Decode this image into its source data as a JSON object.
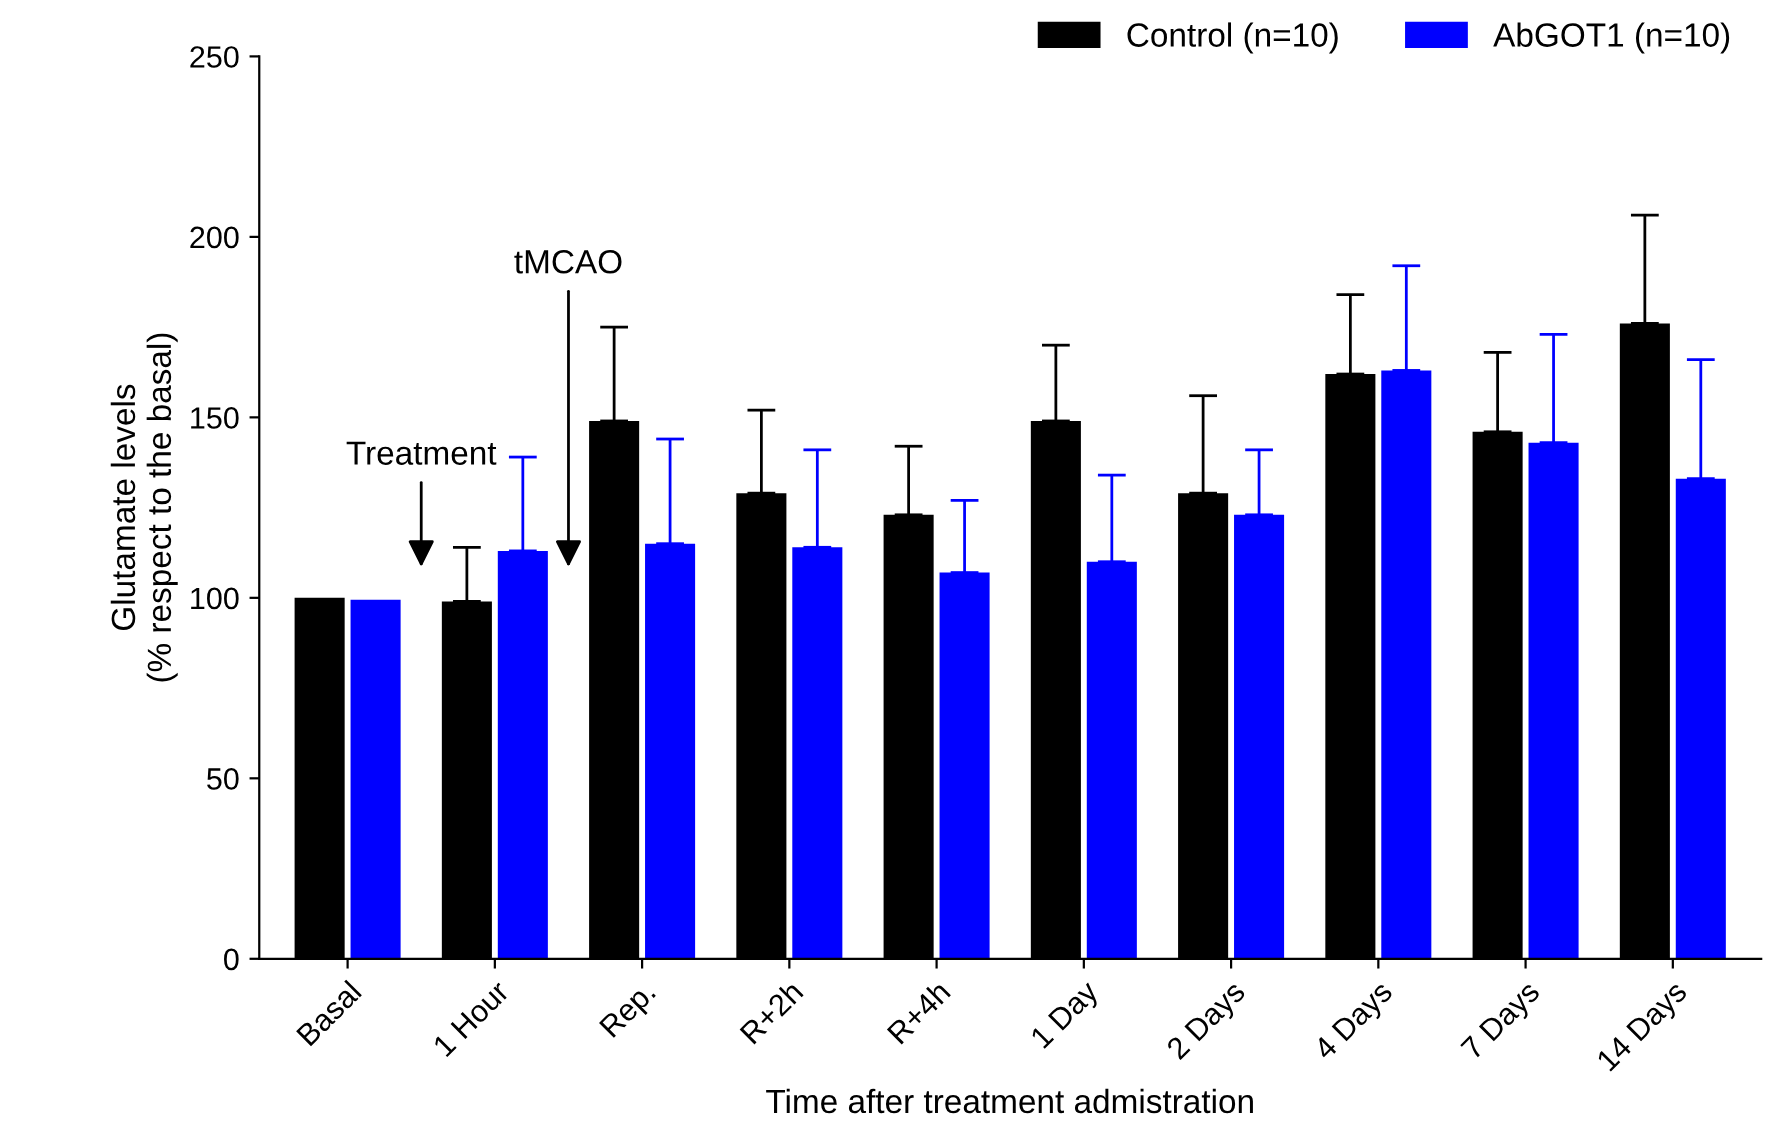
{
  "chart_data": {
    "type": "bar",
    "xlabel": "Time after treatment admistration",
    "ylabel": "Glutamate levels\n(% respect to the basal)",
    "categories": [
      "Basal",
      "1 Hour",
      "Rep.",
      "R+2h",
      "R+4h",
      "1 Day",
      "2 Days",
      "4 Days",
      "7 Days",
      "14 Days"
    ],
    "series": [
      {
        "name": "Control (n=10)",
        "color": "#000000",
        "values": [
          100,
          99,
          149,
          129,
          123,
          149,
          129,
          162,
          146,
          176
        ],
        "errors": [
          null,
          [
            99,
            114
          ],
          [
            149,
            175
          ],
          [
            129,
            152
          ],
          [
            123,
            142
          ],
          [
            149,
            170
          ],
          [
            129,
            156
          ],
          [
            162,
            184
          ],
          [
            146,
            168
          ],
          [
            176,
            206
          ]
        ]
      },
      {
        "name": "AbGOT1 (n=10)",
        "color": "#0000ff",
        "values": [
          99.5,
          113,
          115,
          114,
          107,
          110,
          123,
          163,
          143,
          133
        ],
        "errors": [
          null,
          [
            113,
            139
          ],
          [
            115,
            144
          ],
          [
            114,
            141
          ],
          [
            107,
            127
          ],
          [
            110,
            134
          ],
          [
            123,
            141
          ],
          [
            163,
            192
          ],
          [
            143,
            173
          ],
          [
            133,
            166
          ]
        ]
      }
    ],
    "annotations": [
      "Treatment",
      "tMCAO"
    ],
    "ylim": [
      0,
      250
    ],
    "yticks": [
      0,
      50,
      100,
      150,
      200,
      250
    ],
    "grid": false,
    "legend": "top right"
  }
}
